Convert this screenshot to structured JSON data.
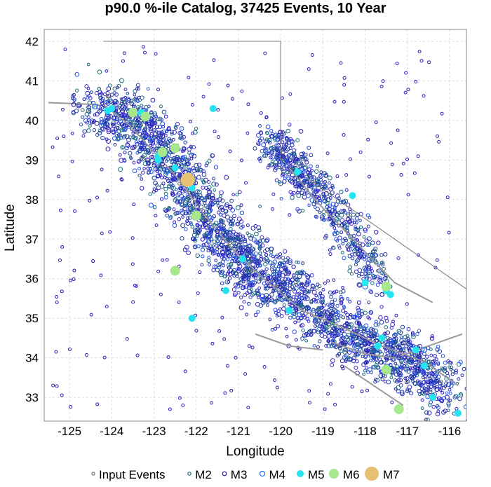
{
  "title": "p90.0 %-ile Catalog, 37425 Events, 10 Year",
  "chart_data": {
    "type": "scatter",
    "title": "p90.0 %-ile Catalog, 37425 Events, 10 Year",
    "xlabel": "Longitude",
    "ylabel": "Latitude",
    "xlim": [
      -125.6,
      -115.6
    ],
    "ylim": [
      32.4,
      42.3
    ],
    "xticks": [
      -125,
      -124,
      -123,
      -122,
      -121,
      -120,
      -119,
      -118,
      -117,
      -116
    ],
    "yticks": [
      33,
      34,
      35,
      36,
      37,
      38,
      39,
      40,
      41,
      42
    ],
    "grid": true,
    "legend_position": "bottom",
    "series": [
      {
        "name": "Input Events",
        "color": "#777777",
        "marker": "small-open-circle",
        "values": [
          [
            -124.1,
            40.6
          ],
          [
            -123.6,
            40.1
          ],
          [
            -122.9,
            39.2
          ],
          [
            -122.4,
            38.4
          ],
          [
            -121.8,
            37.5
          ],
          [
            -121.2,
            36.9
          ],
          [
            -120.7,
            36.2
          ],
          [
            -120.1,
            35.8
          ],
          [
            -118.4,
            37.6
          ],
          [
            -117.7,
            36.2
          ],
          [
            -116.8,
            34.1
          ],
          [
            -116.2,
            33.4
          ]
        ]
      },
      {
        "name": "M2",
        "color": "#1c6b7f",
        "marker": "open-circle",
        "values": [
          [
            -124.3,
            40.8
          ],
          [
            -123.2,
            39.8
          ],
          [
            -122.0,
            38.1
          ],
          [
            -121.0,
            36.4
          ],
          [
            -119.7,
            38.8
          ],
          [
            -118.1,
            37.3
          ],
          [
            -117.4,
            35.8
          ],
          [
            -116.5,
            33.9
          ],
          [
            -118.8,
            34.3
          ]
        ]
      },
      {
        "name": "M3",
        "color": "#2a1fb8",
        "marker": "open-circle",
        "values": [
          [
            -124.9,
            40.4
          ],
          [
            -122.8,
            38.9
          ],
          [
            -121.5,
            37.2
          ],
          [
            -120.3,
            36.0
          ],
          [
            -119.5,
            38.6
          ],
          [
            -118.4,
            37.5
          ],
          [
            -117.6,
            35.6
          ],
          [
            -116.3,
            33.2
          ],
          [
            -117.2,
            34.0
          ]
        ]
      },
      {
        "name": "M4",
        "color": "#1e6cf0",
        "marker": "open-circle",
        "values": [
          [
            -124.4,
            40.35
          ],
          [
            -122.7,
            38.7
          ],
          [
            -121.1,
            36.5
          ],
          [
            -118.0,
            35.8
          ],
          [
            -116.6,
            34.2
          ]
        ]
      },
      {
        "name": "M5",
        "color": "#22e5f0",
        "marker": "filled-circle",
        "values": [
          [
            -124.0,
            40.3
          ],
          [
            -123.3,
            40.2
          ],
          [
            -122.9,
            39.1
          ],
          [
            -122.5,
            38.8
          ],
          [
            -122.1,
            38.3
          ],
          [
            -121.6,
            40.3
          ],
          [
            -121.3,
            35.7
          ],
          [
            -120.9,
            36.5
          ],
          [
            -119.6,
            38.7
          ],
          [
            -118.3,
            38.1
          ],
          [
            -118.0,
            35.9
          ],
          [
            -117.5,
            35.7
          ],
          [
            -117.4,
            35.6
          ],
          [
            -117.7,
            34.3
          ],
          [
            -116.8,
            34.2
          ],
          [
            -116.6,
            33.8
          ],
          [
            -116.4,
            33.0
          ],
          [
            -115.8,
            32.6
          ],
          [
            -122.1,
            35.0
          ],
          [
            -122.9,
            39.0
          ],
          [
            -119.8,
            35.2
          ],
          [
            -117.6,
            34.5
          ],
          [
            -124.1,
            40.25
          ]
        ]
      },
      {
        "name": "M6",
        "color": "#a6e88b",
        "marker": "filled-circle",
        "values": [
          [
            -123.5,
            40.2
          ],
          [
            -123.2,
            40.1
          ],
          [
            -122.8,
            39.2
          ],
          [
            -122.5,
            39.3
          ],
          [
            -122.0,
            37.6
          ],
          [
            -122.5,
            36.2
          ],
          [
            -117.5,
            35.8
          ],
          [
            -117.5,
            33.7
          ],
          [
            -117.2,
            32.7
          ]
        ]
      },
      {
        "name": "M7",
        "color": "#e8c072",
        "marker": "filled-circle",
        "values": [
          [
            -122.2,
            38.5
          ]
        ]
      }
    ],
    "legend": [
      "Input Events",
      "M2",
      "M3",
      "M4",
      "M5",
      "M6",
      "M7"
    ]
  }
}
